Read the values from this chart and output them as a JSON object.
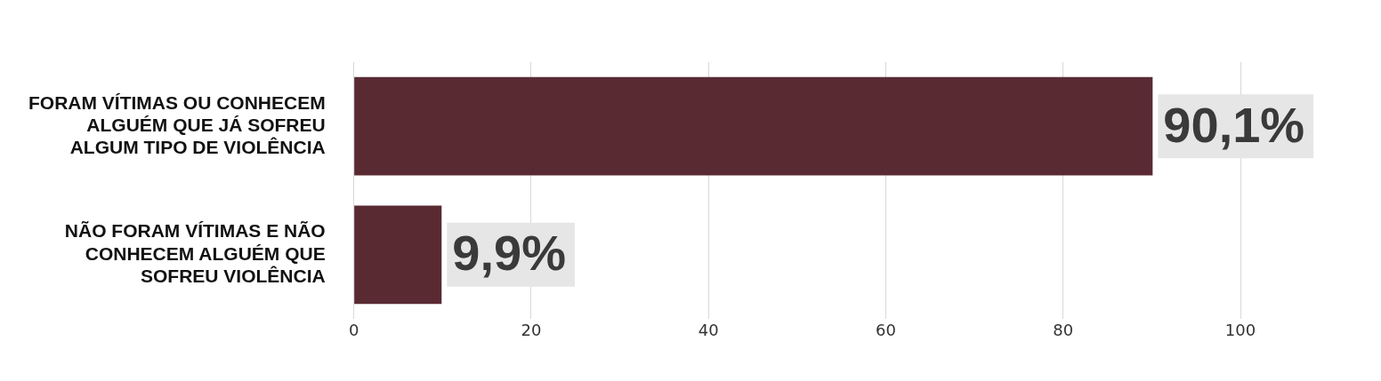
{
  "chart_data": {
    "type": "bar",
    "orientation": "horizontal",
    "categories": [
      "FORAM VÍTIMAS OU CONHECEM ALGUÉM QUE JÁ SOFREU ALGUM TIPO DE VIOLÊNCIA",
      "NÃO FORAM VÍTIMAS E NÃO CONHECEM ALGUÉM QUE SOFREU VIOLÊNCIA"
    ],
    "values": [
      90.1,
      9.9
    ],
    "color": "#5a2a33",
    "value_labels": [
      "90,1%",
      "9,9%"
    ],
    "xlim": [
      0,
      100
    ],
    "xticks": [
      0,
      20,
      40,
      60,
      80,
      100
    ],
    "grid": "x",
    "legend": false
  }
}
